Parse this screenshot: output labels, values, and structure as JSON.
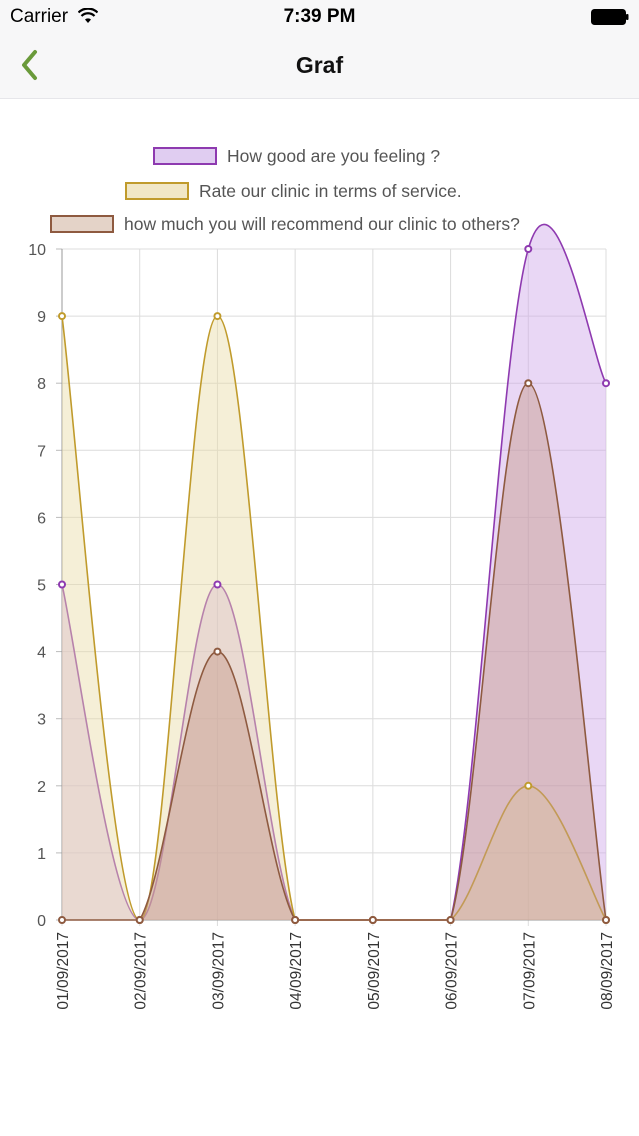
{
  "status_bar": {
    "carrier": "Carrier",
    "time": "7:39 PM"
  },
  "nav": {
    "title": "Graf"
  },
  "legend": [
    {
      "label": "How good are you feeling ?",
      "color": "#8e3ab0",
      "fill": "#e0cdf1"
    },
    {
      "label": "Rate our clinic in terms of service.",
      "color": "#c09b2c",
      "fill": "#f1e7c6"
    },
    {
      "label": "how much you will recommend our clinic to others?",
      "color": "#8e5a40",
      "fill": "#e4d3c8"
    }
  ],
  "chart_data": {
    "type": "area",
    "categories": [
      "01/09/2017",
      "02/09/2017",
      "03/09/2017",
      "04/09/2017",
      "05/09/2017",
      "06/09/2017",
      "07/09/2017",
      "08/09/2017"
    ],
    "series": [
      {
        "name": "How good are you feeling ?",
        "values": [
          5,
          0,
          5,
          0,
          0,
          0,
          10,
          8
        ],
        "line_color": "#8e3ab0",
        "fill_color": "#cfa6e8"
      },
      {
        "name": "Rate our clinic in terms of service.",
        "values": [
          9,
          0,
          9,
          0,
          0,
          0,
          2,
          0
        ],
        "line_color": "#c09b2c",
        "fill_color": "#e9dca6"
      },
      {
        "name": "how much you will recommend our clinic to others?",
        "values": [
          0,
          0,
          4,
          0,
          0,
          0,
          8,
          0
        ],
        "line_color": "#8e5a40",
        "fill_color": "#c5998a"
      }
    ],
    "ylim": [
      0,
      10
    ],
    "y_ticks": [
      "0",
      "1",
      "2",
      "3",
      "4",
      "5",
      "6",
      "7",
      "8",
      "9",
      "10"
    ],
    "grid": true,
    "legend_position": "top"
  }
}
